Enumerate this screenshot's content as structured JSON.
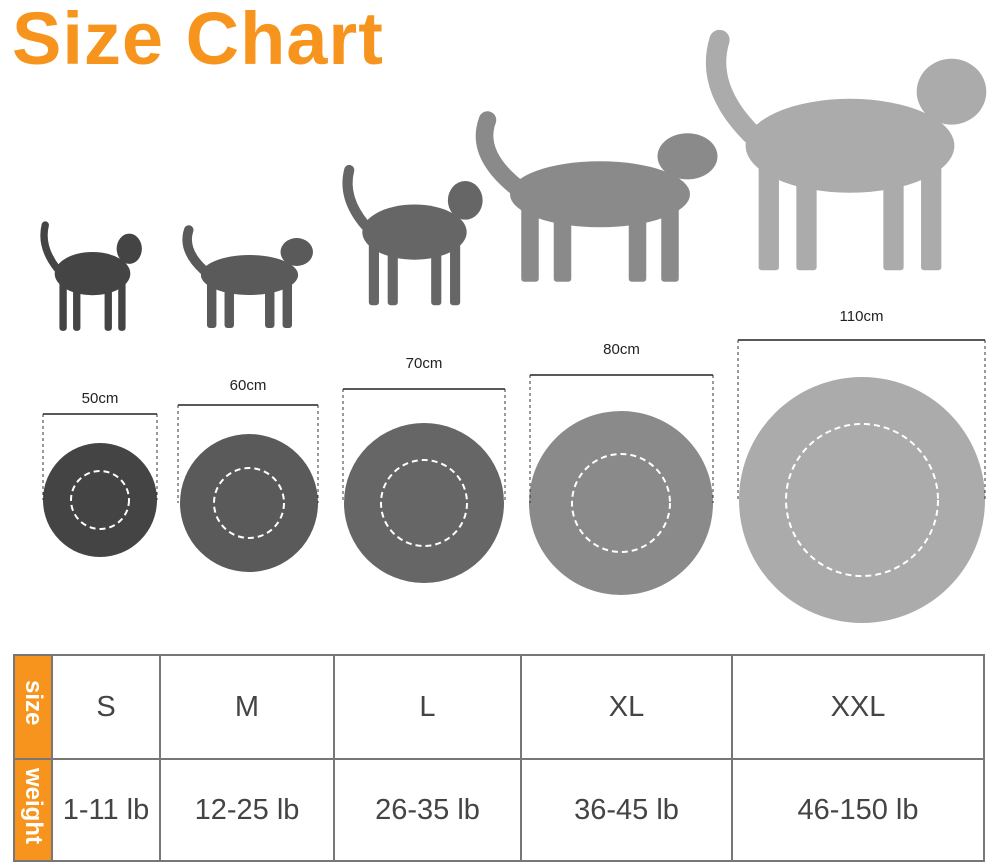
{
  "title": "Size Chart",
  "colors": {
    "accent": "#f7941d"
  },
  "sizes": [
    {
      "size": "S",
      "diameter": "50cm",
      "weight": "1-11 lb",
      "animal": "cat",
      "color": "#444444"
    },
    {
      "size": "M",
      "diameter": "60cm",
      "weight": "12-25 lb",
      "animal": "small-dog",
      "color": "#5a5a5a"
    },
    {
      "size": "L",
      "diameter": "70cm",
      "weight": "26-35 lb",
      "animal": "pug",
      "color": "#666666"
    },
    {
      "size": "XL",
      "diameter": "80cm",
      "weight": "36-45 lb",
      "animal": "retriever",
      "color": "#8a8a8a"
    },
    {
      "size": "XXL",
      "diameter": "110cm",
      "weight": "46-150 lb",
      "animal": "husky",
      "color": "#ababab"
    }
  ],
  "table": {
    "size_header": "size",
    "weight_header": "weight"
  }
}
